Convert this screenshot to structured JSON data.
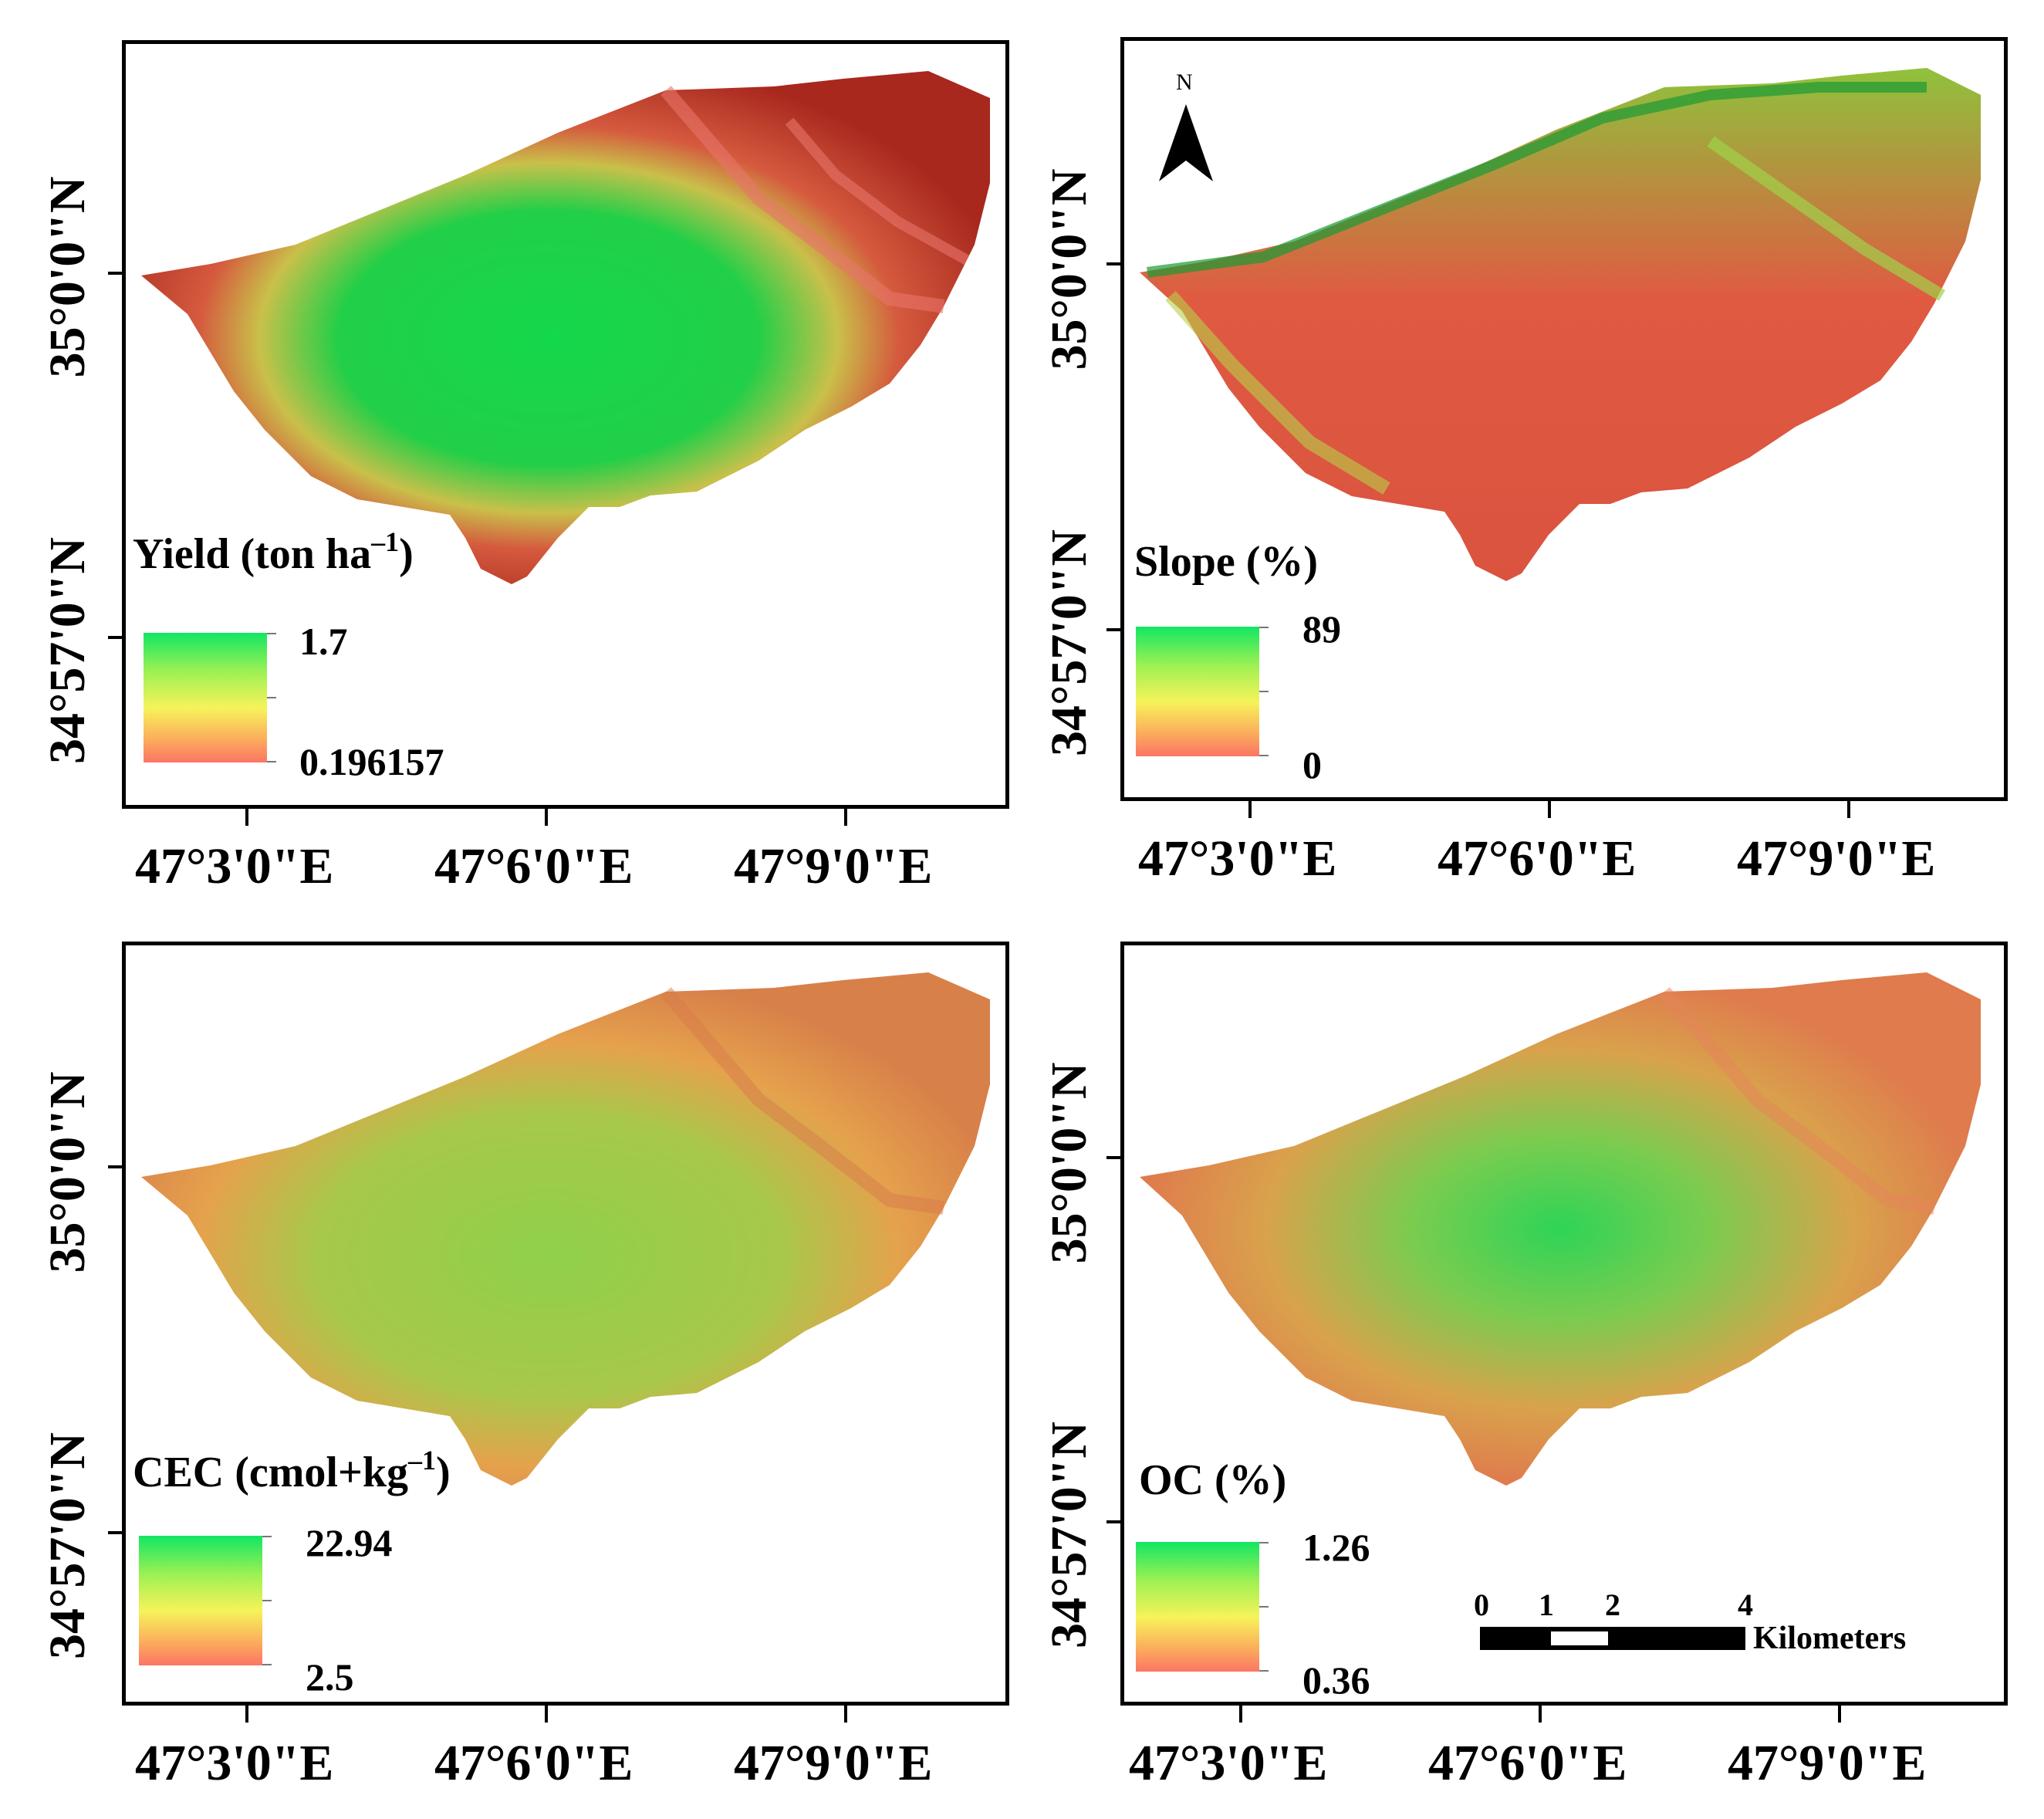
{
  "lat_labels": [
    "35°0'0\"N",
    "34°57'0\"N"
  ],
  "lon_labels": [
    "47°3'0\"E",
    "47°6'0\"E",
    "47°9'0\"E"
  ],
  "panels": [
    {
      "name": "yield",
      "title": "Yield (ton ha",
      "sup": "–1",
      "close": ")",
      "max": "1.7",
      "min": "0.196157"
    },
    {
      "name": "slope",
      "title": "Slope (%)",
      "sup": "",
      "close": "",
      "max": "89",
      "min": "0"
    },
    {
      "name": "cec",
      "title": "CEC (cmol+kg",
      "sup": "–1",
      "close": ")",
      "max": "22.94",
      "min": "2.5"
    },
    {
      "name": "oc",
      "title": "OC (%)",
      "sup": "",
      "close": "",
      "max": "1.26",
      "min": "0.36"
    }
  ],
  "north_arrow": {
    "label": "N"
  },
  "scale_bar": {
    "ticks": [
      "0",
      "1",
      "2",
      "4"
    ],
    "unit": "Kilometers"
  },
  "colors": {
    "high": "#12e663",
    "mid": "#f6f35a",
    "low": "#fb7563"
  }
}
